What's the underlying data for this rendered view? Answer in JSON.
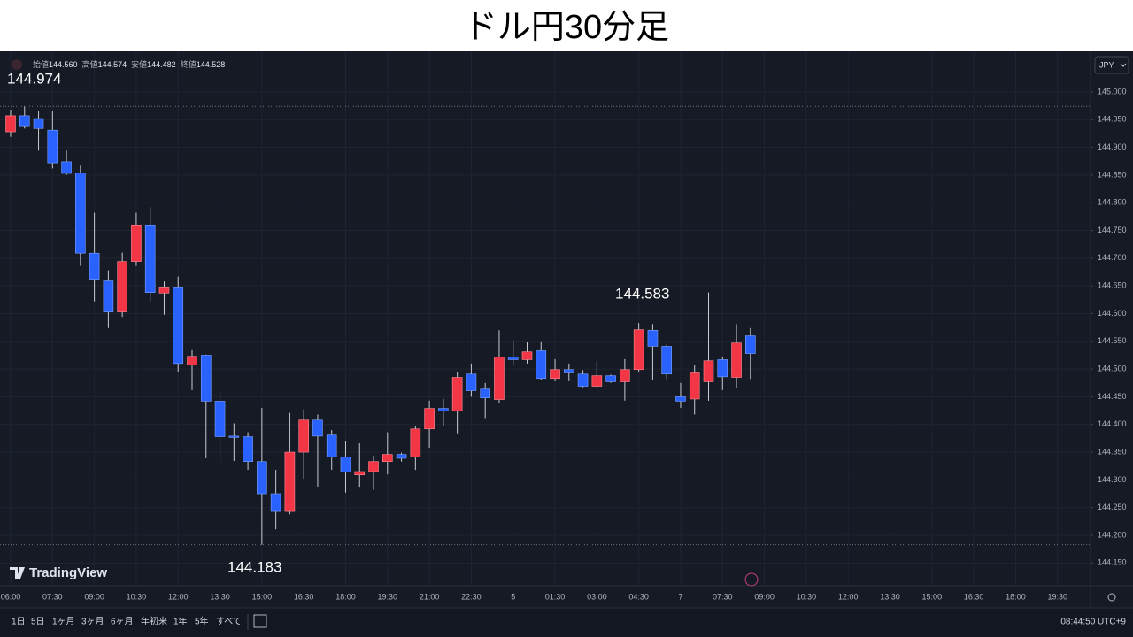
{
  "header": {
    "title": "ドル円30分足"
  },
  "legend": {
    "items": [
      {
        "label": "始値",
        "value": "144.560"
      },
      {
        "label": "高値",
        "value": "144.574"
      },
      {
        "label": "安値",
        "value": "144.482"
      },
      {
        "label": "終値",
        "value": "144.528"
      }
    ]
  },
  "currency": "JPY",
  "brand": "TradingView",
  "toolbar": {
    "ranges": [
      "1日",
      "5日",
      "1ヶ月",
      "3ヶ月",
      "6ヶ月",
      "年初来",
      "1年",
      "5年",
      "すべて"
    ],
    "clock": "08:44:50 UTC+9"
  },
  "chart_data": {
    "type": "candlestick",
    "categories": [
      "06:00",
      null,
      null,
      "07:30",
      null,
      null,
      "09:00",
      null,
      null,
      "10:30",
      null,
      null,
      "12:00",
      null,
      null,
      "13:30",
      null,
      null,
      "15:00",
      null,
      null,
      "16:30",
      null,
      null,
      "18:00",
      null,
      null,
      "19:30",
      null,
      null,
      "21:00",
      null,
      null,
      "22:30",
      null,
      null,
      "5",
      null,
      null,
      "01:30",
      null,
      null,
      "03:00",
      null,
      null,
      "04:30",
      null,
      null,
      "7",
      null,
      null,
      "07:30",
      null,
      null,
      "09:00",
      null,
      null,
      "10:30",
      null,
      null,
      "12:00",
      null,
      null,
      "13:30",
      null,
      null,
      "15:00",
      null,
      null,
      "16:30",
      null,
      null,
      "18:00",
      null,
      null,
      "19:30",
      null,
      null
    ],
    "open": [
      144.928,
      144.957,
      144.952,
      144.931,
      144.874,
      144.854,
      144.709,
      144.659,
      144.603,
      144.694,
      144.76,
      144.637,
      144.648,
      144.507,
      144.525,
      144.442,
      144.379,
      144.378,
      144.333,
      144.275,
      144.243,
      144.35,
      144.408,
      144.381,
      144.341,
      144.309,
      144.315,
      144.333,
      144.346,
      144.341,
      144.392,
      144.429,
      144.424,
      144.491,
      144.464,
      144.445,
      144.522,
      144.517,
      144.533,
      144.483,
      144.499,
      144.491,
      144.469,
      144.488,
      144.477,
      144.499,
      144.57,
      144.541,
      144.45,
      144.446,
      144.477,
      144.517,
      144.485,
      144.56,
      null,
      null,
      null,
      null,
      null,
      null,
      null,
      null,
      null,
      null,
      null,
      null,
      null,
      null,
      null,
      null,
      null,
      null,
      null,
      null,
      null,
      null,
      null,
      null
    ],
    "high": [
      144.968,
      144.974,
      144.965,
      144.966,
      144.894,
      144.867,
      144.782,
      144.678,
      144.71,
      144.782,
      144.792,
      144.658,
      144.667,
      144.534,
      144.526,
      144.462,
      144.402,
      144.386,
      144.43,
      144.318,
      144.421,
      144.427,
      144.418,
      144.39,
      144.37,
      144.366,
      144.344,
      144.386,
      144.349,
      144.397,
      144.443,
      144.446,
      144.494,
      144.51,
      144.475,
      144.57,
      144.552,
      144.549,
      144.55,
      144.518,
      144.51,
      144.498,
      144.514,
      144.49,
      144.518,
      144.583,
      144.581,
      144.544,
      144.475,
      144.507,
      144.638,
      144.522,
      144.581,
      144.574,
      null,
      null,
      null,
      null,
      null,
      null,
      null,
      null,
      null,
      null,
      null,
      null,
      null,
      null,
      null,
      null,
      null,
      null,
      null,
      null,
      null,
      null,
      null,
      null
    ],
    "low": [
      144.919,
      144.934,
      144.894,
      144.862,
      144.85,
      144.686,
      144.622,
      144.574,
      144.594,
      144.686,
      144.622,
      144.598,
      144.494,
      144.462,
      144.339,
      144.33,
      144.334,
      144.318,
      144.183,
      144.211,
      144.238,
      144.302,
      144.288,
      144.318,
      144.277,
      144.286,
      144.282,
      144.31,
      144.333,
      144.318,
      144.358,
      144.398,
      144.384,
      144.45,
      144.41,
      144.438,
      144.507,
      144.51,
      144.48,
      144.478,
      144.478,
      144.467,
      144.466,
      144.475,
      144.443,
      144.494,
      144.48,
      144.482,
      144.43,
      144.418,
      144.443,
      144.462,
      144.466,
      144.482,
      null,
      null,
      null,
      null,
      null,
      null,
      null,
      null,
      null,
      null,
      null,
      null,
      null,
      null,
      null,
      null,
      null,
      null,
      null,
      null,
      null,
      null,
      null,
      null
    ],
    "close": [
      144.957,
      144.939,
      144.934,
      144.872,
      144.853,
      144.709,
      144.662,
      144.603,
      144.694,
      144.76,
      144.638,
      144.648,
      144.51,
      144.523,
      144.442,
      144.378,
      144.378,
      144.333,
      144.275,
      144.243,
      144.35,
      144.408,
      144.379,
      144.341,
      144.314,
      144.315,
      144.333,
      144.346,
      144.339,
      144.392,
      144.429,
      144.424,
      144.485,
      144.461,
      144.448,
      144.522,
      144.517,
      144.531,
      144.483,
      144.499,
      144.493,
      144.469,
      144.488,
      144.477,
      144.499,
      144.571,
      144.541,
      144.491,
      144.442,
      144.493,
      144.515,
      144.486,
      144.547,
      144.528,
      null,
      null,
      null,
      null,
      null,
      null,
      null,
      null,
      null,
      null,
      null,
      null,
      null,
      null,
      null,
      null,
      null,
      null,
      null,
      null,
      null,
      null,
      null,
      null
    ],
    "up_color": "#f23645",
    "down_color": "#2962ff",
    "ylim": [
      144.109,
      145.067
    ],
    "yticks": [
      {
        "value": 145.0,
        "label": "145.000"
      },
      {
        "value": 144.95,
        "label": "144.950"
      },
      {
        "value": 144.9,
        "label": "144.900"
      },
      {
        "value": 144.85,
        "label": "144.850"
      },
      {
        "value": 144.8,
        "label": "144.800"
      },
      {
        "value": 144.75,
        "label": "144.750"
      },
      {
        "value": 144.7,
        "label": "144.700"
      },
      {
        "value": 144.65,
        "label": "144.650"
      },
      {
        "value": 144.6,
        "label": "144.600"
      },
      {
        "value": 144.55,
        "label": "144.550"
      },
      {
        "value": 144.5,
        "label": "144.500"
      },
      {
        "value": 144.45,
        "label": "144.450"
      },
      {
        "value": 144.4,
        "label": "144.400"
      },
      {
        "value": 144.35,
        "label": "144.350"
      },
      {
        "value": 144.3,
        "label": "144.300"
      },
      {
        "value": 144.25,
        "label": "144.250"
      },
      {
        "value": 144.2,
        "label": "144.200"
      },
      {
        "value": 144.15,
        "label": "144.150"
      }
    ],
    "annotations": [
      {
        "value": 144.974,
        "label": "144.974"
      },
      {
        "value": 144.583,
        "label": "144.583"
      },
      {
        "value": 144.183,
        "label": "144.183"
      }
    ],
    "grid": true
  }
}
